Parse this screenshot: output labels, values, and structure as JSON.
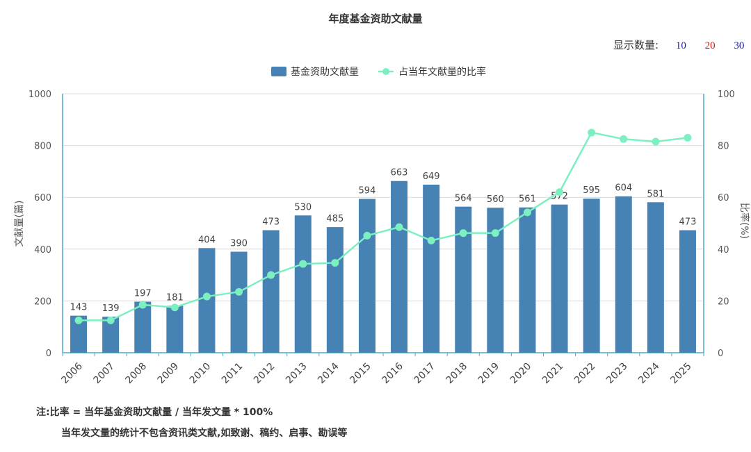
{
  "count_control": {
    "label": "显示数量:",
    "options": [
      "10",
      "20",
      "30"
    ]
  },
  "notes": {
    "line1": "注:比率 = 当年基金资助文献量 / 当年发文量 * 100%",
    "line2": "当年发文量的统计不包含资讯类文献,如致谢、稿约、启事、勘误等"
  },
  "chart_data": {
    "type": "bar",
    "title": "年度基金资助文献量",
    "categories": [
      "2006",
      "2007",
      "2008",
      "2009",
      "2010",
      "2011",
      "2012",
      "2013",
      "2014",
      "2015",
      "2016",
      "2017",
      "2018",
      "2019",
      "2020",
      "2021",
      "2022",
      "2023",
      "2024",
      "2025"
    ],
    "series": [
      {
        "name": "基金资助文献量",
        "type": "bar",
        "axis": "left",
        "color": "#4682b4",
        "values": [
          143,
          139,
          197,
          181,
          404,
          390,
          473,
          530,
          485,
          594,
          663,
          649,
          564,
          560,
          561,
          572,
          595,
          604,
          581,
          473
        ]
      },
      {
        "name": "占当年文献量的比率",
        "type": "line",
        "axis": "right",
        "color": "#7cf0c0",
        "values": [
          12.5,
          12.5,
          18.5,
          17.5,
          21.7,
          23.5,
          30,
          34.3,
          34.7,
          45.2,
          48.5,
          43.3,
          46.2,
          46.2,
          54.2,
          62,
          85,
          82.5,
          81.5,
          83
        ]
      }
    ],
    "ylabel": "文献量(篇)",
    "ylim": [
      0,
      1000
    ],
    "yticks": [
      "0",
      "200",
      "400",
      "600",
      "800",
      "1000"
    ],
    "y2label": "比率(%)",
    "y2lim": [
      0,
      100
    ],
    "y2ticks": [
      "0",
      "20",
      "40",
      "60",
      "80",
      "100"
    ],
    "grid": true,
    "legend": "top-center",
    "colors": {
      "bar": "#4682b4",
      "line": "#7cf0c0",
      "axis": "#4aa8c8",
      "grid": "#d9d9d9"
    }
  }
}
